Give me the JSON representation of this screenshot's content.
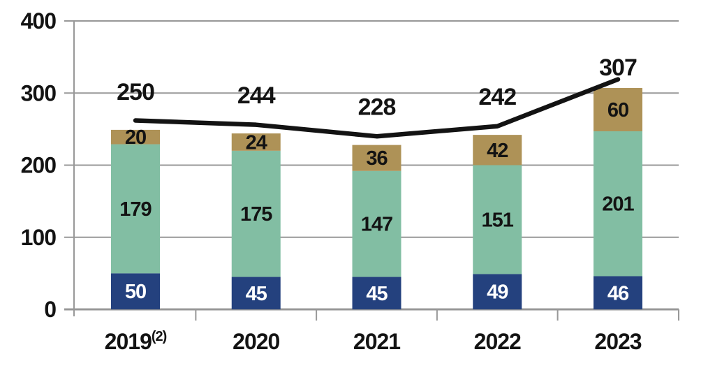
{
  "chart_data": {
    "type": "bar",
    "subtype": "stacked-bars-with-total-line",
    "title": "",
    "categories": [
      "2019",
      "2020",
      "2021",
      "2022",
      "2023"
    ],
    "category_superscripts": [
      "(2)",
      "",
      "",
      "",
      ""
    ],
    "series": [
      {
        "name": "bottom-segment",
        "color": "#24417E",
        "label_color": "#FFFFFF",
        "values": [
          50,
          45,
          45,
          49,
          46
        ]
      },
      {
        "name": "middle-segment",
        "color": "#82BEA3",
        "label_color": "#131313",
        "values": [
          179,
          175,
          147,
          151,
          201
        ]
      },
      {
        "name": "top-segment",
        "color": "#AE9257",
        "label_color": "#131313",
        "values": [
          20,
          24,
          36,
          42,
          60
        ]
      }
    ],
    "totals": [
      250,
      244,
      228,
      242,
      307
    ],
    "line": {
      "name": "total-line",
      "color": "#131313",
      "values": [
        250,
        244,
        228,
        242,
        307
      ]
    },
    "ylim": [
      0,
      400
    ],
    "yticks": [
      0,
      100,
      200,
      300,
      400
    ],
    "grid": true,
    "legend_position": "none"
  },
  "colors": {
    "background": "#FFFFFF",
    "gridline": "#989898",
    "axis": "#8C8C8C",
    "text": "#131313"
  }
}
